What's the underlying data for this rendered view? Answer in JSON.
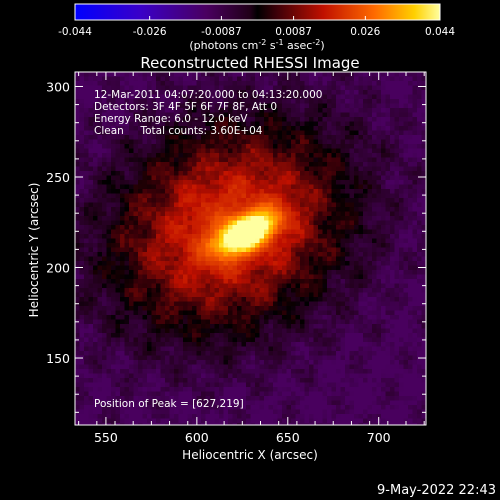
{
  "chart_data": {
    "type": "heatmap",
    "title": "Reconstructed RHESSI Image",
    "xlabel": "Heliocentric X (arcsec)",
    "ylabel": "Heliocentric Y (arcsec)",
    "xlim": [
      533,
      726
    ],
    "ylim": [
      113,
      308
    ],
    "x_ticks": [
      550,
      600,
      650,
      700
    ],
    "y_ticks": [
      150,
      200,
      250,
      300
    ],
    "colorbar": {
      "ticks": [
        "-0.044",
        "-0.026",
        "-0.0087",
        "0.0087",
        "0.026",
        "0.044"
      ],
      "range": [
        -0.044,
        0.044
      ],
      "label_pre": "(photons cm",
      "sup1": "-2",
      "mid1": " s",
      "sup2": "-1",
      "label_post": " asec",
      "sup3": "-2",
      "label_end": ")"
    },
    "annotations": {
      "time_range": "12-Mar-2011 04:07:20.000 to 04:13:20.000",
      "detectors": "Detectors: 3F 4F 5F 6F 7F 8F, Att 0",
      "energy": "Energy Range: 6.0 - 12.0 keV",
      "clean": "Clean     Total counts: 3.60E+04",
      "peak": "Position of Peak = [627,219]"
    },
    "peak": [
      627,
      219
    ],
    "value_range": [
      -0.044,
      0.044
    ]
  },
  "footer": {
    "timestamp": "9-May-2022 22:43"
  }
}
